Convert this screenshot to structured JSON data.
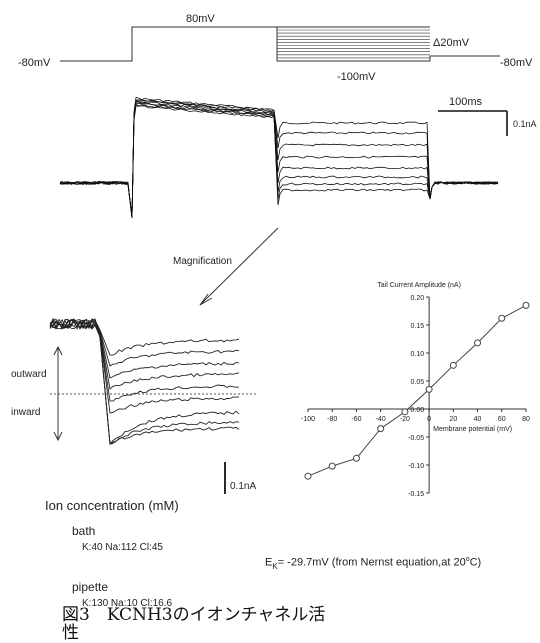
{
  "protocol": {
    "holding_left": "-80mV",
    "step": "80mV",
    "tail_step": "-100mV",
    "increment": "Δ20mV",
    "holding_right": "-80mV"
  },
  "scale": {
    "time": "100ms",
    "current": "0.1nA"
  },
  "magnification_label": "Magnification",
  "inset": {
    "outward": "outward",
    "inward": "inward",
    "scale_current": "0.1nA"
  },
  "chart_data": {
    "type": "scatter",
    "title": "Tail Current Amplitude (nA)",
    "xlabel": "Membrane potential (mV)",
    "ylabel": "",
    "x": [
      -100,
      -80,
      -60,
      -40,
      -20,
      0,
      20,
      40,
      60,
      80
    ],
    "y": [
      -0.12,
      -0.102,
      -0.088,
      -0.035,
      -0.005,
      0.035,
      0.078,
      0.118,
      0.162,
      0.185
    ],
    "xlim": [
      -100,
      80
    ],
    "ylim": [
      -0.15,
      0.2
    ],
    "xticks": [
      "-100",
      "-80",
      "-60",
      "-40",
      "-20",
      "0",
      "20",
      "40",
      "60",
      "80"
    ],
    "yticks": [
      "0.20",
      "0.15",
      "0.10",
      "0.05",
      "0.00",
      "-0.05",
      "-0.10",
      "-0.15"
    ],
    "grid": false,
    "color": "#444444"
  },
  "ion": {
    "title": "Ion concentration (mM)",
    "bath_label": "bath",
    "bath_values": "K:40  Na:112  Cl:45",
    "pipette_label": "pipette",
    "pipette_values": "K:130  Na:10  Cl:16.6"
  },
  "ek": {
    "symbol": "E",
    "sub": "K",
    "text": "= -29.7mV (from Nernst equation,at 20",
    "deg": "o",
    "unit": "C)"
  },
  "caption": {
    "line1": "図3　KCNH3のイオンチャネル活",
    "line2": "性"
  }
}
